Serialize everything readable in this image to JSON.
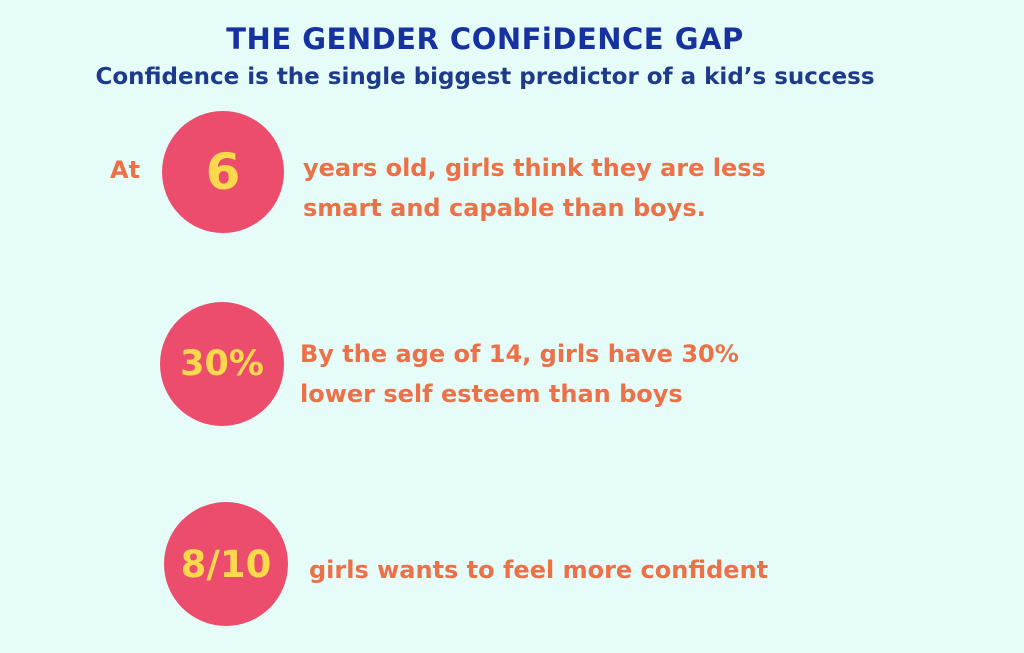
{
  "header": {
    "title": "THE GENDER CONFiDENCE GAP",
    "subtitle": "Confidence is the single biggest predictor of a kid’s success"
  },
  "stats": [
    {
      "prefix": "At",
      "figure": "6",
      "lines": [
        "years old, girls think they are less",
        "smart and capable than boys."
      ]
    },
    {
      "figure": "30%",
      "lines": [
        "By the age of 14, girls have 30%",
        "lower self esteem than boys"
      ]
    },
    {
      "figure": "8/10",
      "lines": [
        "girls wants to feel more confident"
      ]
    }
  ],
  "colors": {
    "background": "#e6fcf8",
    "title": "#1631a0",
    "circle": "#ec4d6d",
    "figure": "#fcd94c",
    "text": "#ec7048"
  }
}
